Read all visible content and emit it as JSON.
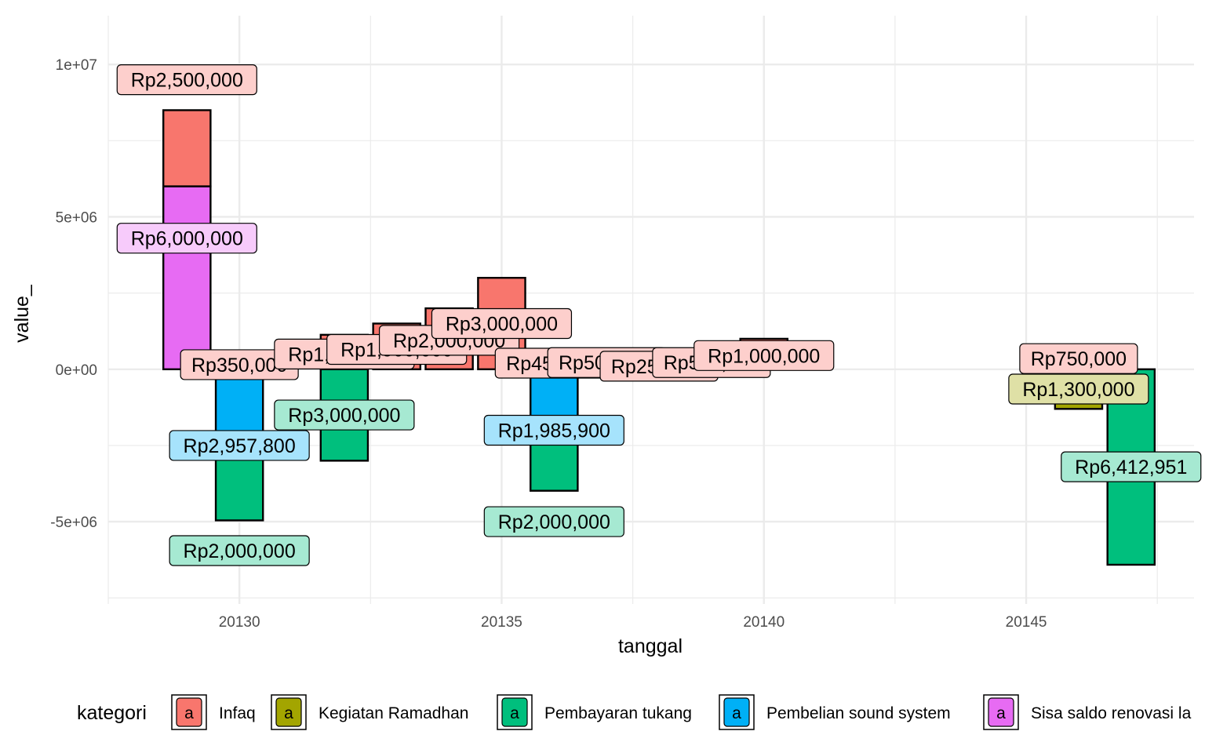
{
  "chart_data": {
    "type": "bar",
    "stacked": true,
    "xlabel": "tanggal",
    "ylabel": "value_",
    "xlim": [
      20127.5,
      20148.2
    ],
    "ylim": [
      -7700000,
      11600000
    ],
    "x_ticks": [
      20130,
      20135,
      20140,
      20145
    ],
    "y_ticks": [
      {
        "value": 10000000,
        "label": "1e+07"
      },
      {
        "value": 5000000,
        "label": "5e+06"
      },
      {
        "value": 0,
        "label": "0e+00"
      },
      {
        "value": -5000000,
        "label": "-5e+06"
      }
    ],
    "grid": true,
    "legend": {
      "title": "kategori",
      "position": "bottom",
      "key_glyph": "a",
      "items": [
        {
          "name": "Infaq",
          "color": "#F8766D"
        },
        {
          "name": "Kegiatan Ramadhan",
          "color": "#A3A500"
        },
        {
          "name": "Pembayaran tukang",
          "color": "#00BF7D"
        },
        {
          "name": "Pembelian sound system",
          "color": "#00B0F6"
        },
        {
          "name": "Sisa saldo renovasi la",
          "color": "#E76BF3"
        }
      ]
    },
    "bars": [
      {
        "x": 20129,
        "y0": 6000000,
        "y1": 8500000,
        "kategori": "Infaq",
        "label": "Rp2,500,000",
        "label_y": 9500000
      },
      {
        "x": 20129,
        "y0": 0,
        "y1": 6000000,
        "kategori": "Sisa saldo renovasi la",
        "label": "Rp6,000,000",
        "label_y": 4300000
      },
      {
        "x": 20130,
        "y0": 0,
        "y1": 350000,
        "kategori": "Infaq",
        "label": "Rp350,000",
        "label_y": 150000
      },
      {
        "x": 20130,
        "y0": -2957800,
        "y1": 0,
        "kategori": "Pembelian sound system",
        "label": "Rp2,957,800",
        "label_y": -2500000
      },
      {
        "x": 20130,
        "y0": -4957800,
        "y1": -2957800,
        "kategori": "Pembayaran tukang",
        "label": "Rp2,000,000",
        "label_y": -5950000
      },
      {
        "x": 20132,
        "y0": 0,
        "y1": 1131000,
        "kategori": "Infaq",
        "label": "Rp1,131,000",
        "label_y": 500000
      },
      {
        "x": 20132,
        "y0": -3000000,
        "y1": 0,
        "kategori": "Pembayaran tukang",
        "label": "Rp3,000,000",
        "label_y": -1500000
      },
      {
        "x": 20133,
        "y0": 0,
        "y1": 1500000,
        "kategori": "Infaq",
        "label": "Rp1,500,000",
        "label_y": 650000
      },
      {
        "x": 20134,
        "y0": 0,
        "y1": 2000000,
        "kategori": "Infaq",
        "label": "Rp2,000,000",
        "label_y": 950000
      },
      {
        "x": 20135,
        "y0": 0,
        "y1": 3000000,
        "kategori": "Infaq",
        "label": "Rp3,000,000",
        "label_y": 1500000
      },
      {
        "x": 20136,
        "y0": 0,
        "y1": 450000,
        "kategori": "Infaq",
        "label": "Rp450,000",
        "label_y": 200000
      },
      {
        "x": 20136,
        "y0": -1985900,
        "y1": 0,
        "kategori": "Pembelian sound system",
        "label": "Rp1,985,900",
        "label_y": -2000000
      },
      {
        "x": 20136,
        "y0": -3985900,
        "y1": -1985900,
        "kategori": "Pembayaran tukang",
        "label": "Rp2,000,000",
        "label_y": -5000000
      },
      {
        "x": 20137,
        "y0": 0,
        "y1": 500000,
        "kategori": "Infaq",
        "label": "Rp500,000",
        "label_y": 220000
      },
      {
        "x": 20138,
        "y0": 0,
        "y1": 250000,
        "kategori": "Infaq",
        "label": "Rp250,000",
        "label_y": 100000
      },
      {
        "x": 20139,
        "y0": 0,
        "y1": 500000,
        "kategori": "Infaq",
        "label": "Rp500,000",
        "label_y": 220000
      },
      {
        "x": 20140,
        "y0": 0,
        "y1": 1000000,
        "kategori": "Infaq",
        "label": "Rp1,000,000",
        "label_y": 450000
      },
      {
        "x": 20146,
        "y0": 0,
        "y1": 750000,
        "kategori": "Infaq",
        "label": "Rp750,000",
        "label_y": 350000
      },
      {
        "x": 20146,
        "y0": -1300000,
        "y1": 0,
        "kategori": "Kegiatan Ramadhan",
        "label": "Rp1,300,000",
        "label_y": -650000
      },
      {
        "x": 20147,
        "y0": -6412951,
        "y1": 0,
        "kategori": "Pembayaran tukang",
        "label": "Rp6,412,951",
        "label_y": -3200000
      }
    ]
  }
}
